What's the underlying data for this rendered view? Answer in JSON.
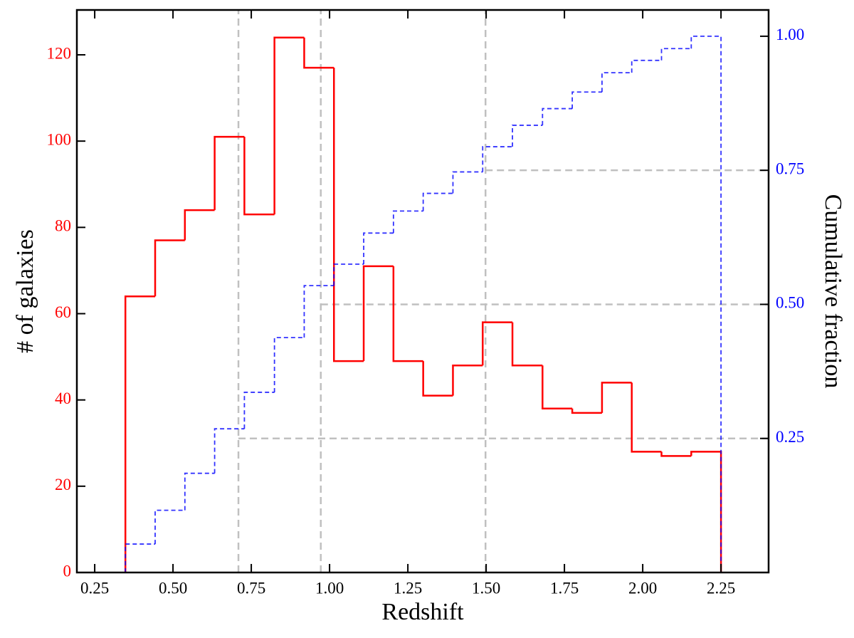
{
  "chart_data": {
    "type": "histogram",
    "xlabel": "Redshift",
    "ylabel": "# of galaxies",
    "y2label": "Cumulative fraction",
    "bins": [
      0.348,
      0.443,
      0.538,
      0.633,
      0.728,
      0.824,
      0.919,
      1.014,
      1.109,
      1.204,
      1.299,
      1.394,
      1.489,
      1.584,
      1.68,
      1.775,
      1.87,
      1.965,
      2.06,
      2.155,
      2.25
    ],
    "series": [
      {
        "color": "#ff0000",
        "linestyle": "solid",
        "values": [
          64,
          77,
          84,
          101,
          83,
          124,
          117,
          49,
          71,
          49,
          41,
          48,
          58,
          48,
          38,
          37,
          44,
          28,
          27,
          28
        ]
      },
      {
        "color": "#0000ff",
        "linestyle": "dashed",
        "axis": "y2",
        "values": [
          0.053,
          0.116,
          0.185,
          0.268,
          0.336,
          0.438,
          0.535,
          0.575,
          0.633,
          0.674,
          0.707,
          0.747,
          0.794,
          0.834,
          0.865,
          0.896,
          0.932,
          0.955,
          0.977,
          1.0
        ]
      }
    ],
    "quantiles": [
      {
        "x": 0.709,
        "y": 0.25
      },
      {
        "x": 0.972,
        "y": 0.5
      },
      {
        "x": 1.498,
        "y": 0.75
      }
    ],
    "quantile_color": "#c0c0c0",
    "xlim": [
      0.193,
      2.402
    ],
    "xticks": [
      {
        "value": 0.25,
        "label": "0.25"
      },
      {
        "value": 0.5,
        "label": "0.50"
      },
      {
        "value": 0.75,
        "label": "0.75"
      },
      {
        "value": 1.0,
        "label": "1.00"
      },
      {
        "value": 1.25,
        "label": "1.25"
      },
      {
        "value": 1.5,
        "label": "1.50"
      },
      {
        "value": 1.75,
        "label": "1.75"
      },
      {
        "value": 2.0,
        "label": "2.00"
      },
      {
        "value": 2.25,
        "label": "2.25"
      }
    ],
    "ylim": [
      0,
      130.4
    ],
    "yticks": [
      0,
      20,
      40,
      60,
      80,
      100,
      120
    ],
    "y2lim": [
      0,
      1.049
    ],
    "y2ticks": [
      0.25,
      {
        "value": 0.5,
        "label": "0.50"
      },
      0.75,
      {
        "value": 1.0,
        "label": "1.00"
      }
    ]
  }
}
